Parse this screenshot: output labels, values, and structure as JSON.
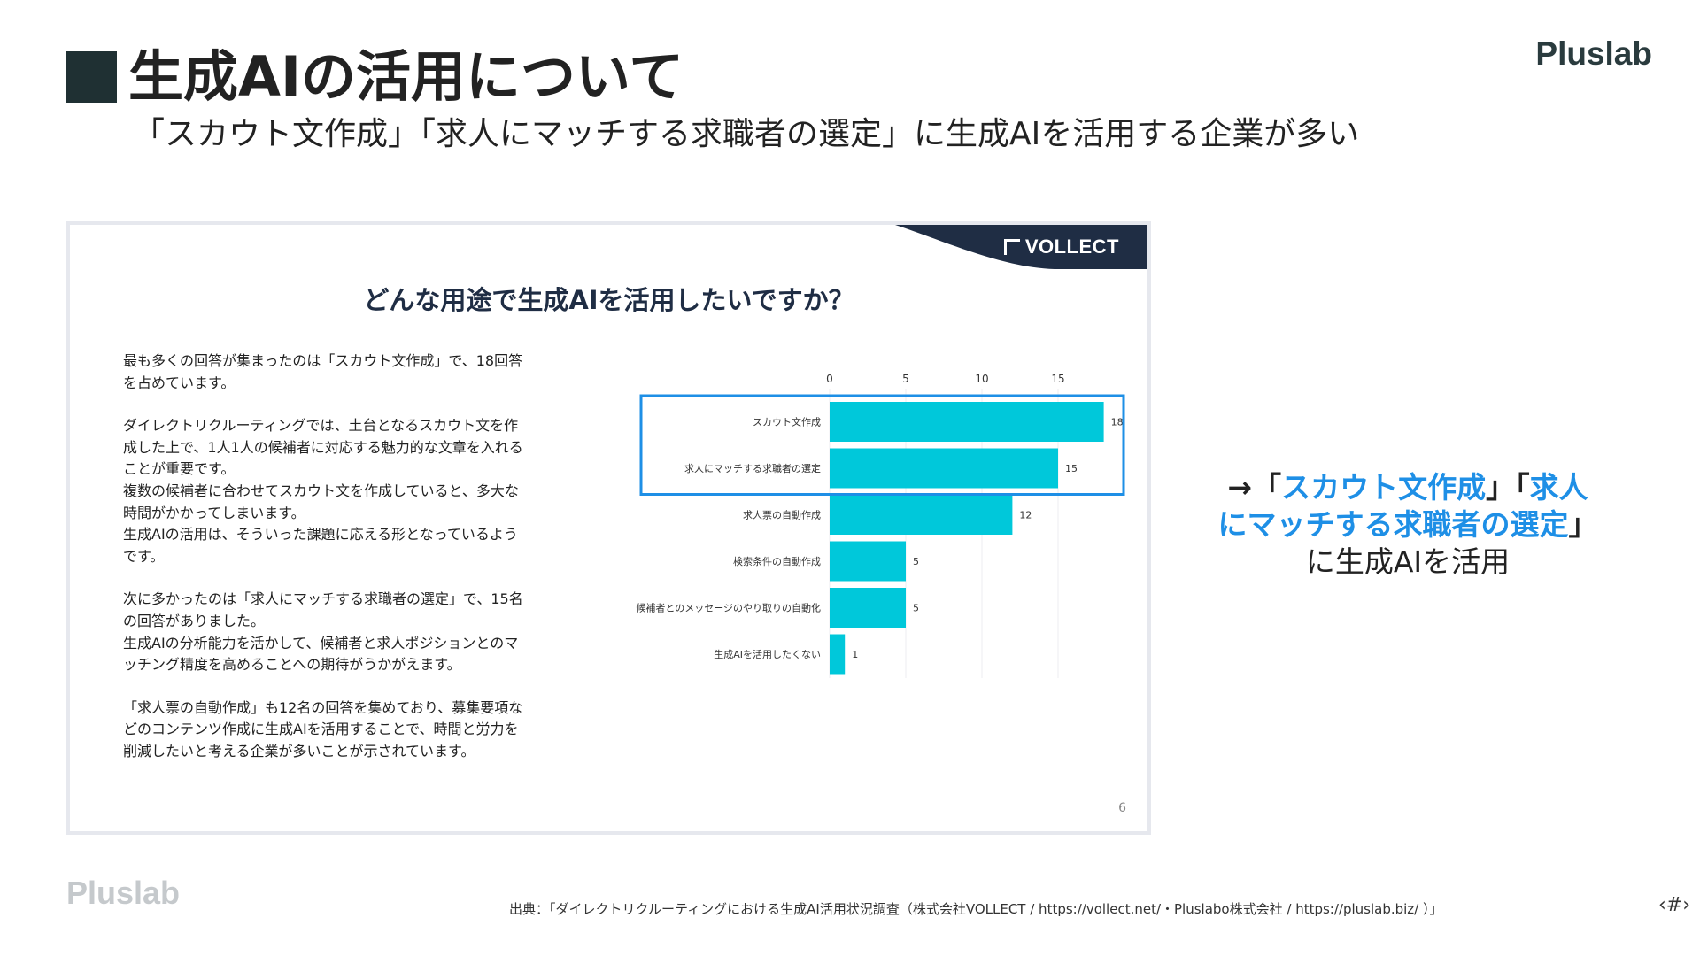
{
  "page": {
    "title": "生成AIの活用について",
    "subtitle": "「スカウト文作成」「求人にマッチする求職者の選定」に生成AIを活用する企業が多い",
    "brand_top": "Pluslab",
    "brand_bottom": "Pluslab",
    "source": "出典：「ダイレクトリクルーティングにおける生成AI活用状況調査（株式会社VOLLECT / https://vollect.net/・Pluslabo株式会社 / https://pluslab.biz/ ）」",
    "page_mark": "‹#›"
  },
  "slide": {
    "logo_text": "VOLLECT",
    "heading": "どんな用途で生成AIを活用したいですか？",
    "paragraphs": [
      "最も多くの回答が集まったのは「スカウト文作成」で、18回答\nを占めています。",
      "ダイレクトリクルーティングでは、土台となるスカウト文を作\n成した上で、1人1人の候補者に対応する魅力的な文章を入れる\nことが重要です。\n複数の候補者に合わせてスカウト文を作成していると、多大な\n時間がかかってしまいます。\n生成AIの活用は、そういった課題に応える形となっているよう\nです。",
      "次に多かったのは「求人にマッチする求職者の選定」で、15名\nの回答がありました。\n生成AIの分析能力を活かして、候補者と求人ポジションとのマ\nッチング精度を高めることへの期待がうかがえます。",
      "「求人票の自動作成」も12名の回答を集めており、募集要項な\nどのコンテンツ作成に生成AIを活用することで、時間と労力を\n削減したいと考える企業が多いことが示されています。"
    ],
    "page_number": "6"
  },
  "callout": {
    "arrow": "→「",
    "highlight1": "スカウト文作成",
    "mid": "」「",
    "highlight2a": "求人",
    "highlight2b": "にマッチする求職者の選定",
    "end": "」",
    "tail": "に生成AIを活用"
  },
  "colors": {
    "bar": "#00c8da",
    "highlight_box": "#1e8fe6",
    "navy": "#1f2d44",
    "callout_blue": "#1e8fe6"
  },
  "chart_data": {
    "type": "bar",
    "orientation": "horizontal",
    "categories": [
      "スカウト文作成",
      "求人にマッチする求職者の選定",
      "求人票の自動作成",
      "検索条件の自動作成",
      "候補者とのメッセージのやり取りの自動化",
      "生成AIを活用したくない"
    ],
    "values": [
      18,
      15,
      12,
      5,
      5,
      1
    ],
    "xticks": [
      0,
      5,
      10,
      15
    ],
    "xlim": [
      0,
      20
    ],
    "grid": true,
    "highlighted_categories": [
      "スカウト文作成",
      "求人にマッチする求職者の選定"
    ]
  }
}
